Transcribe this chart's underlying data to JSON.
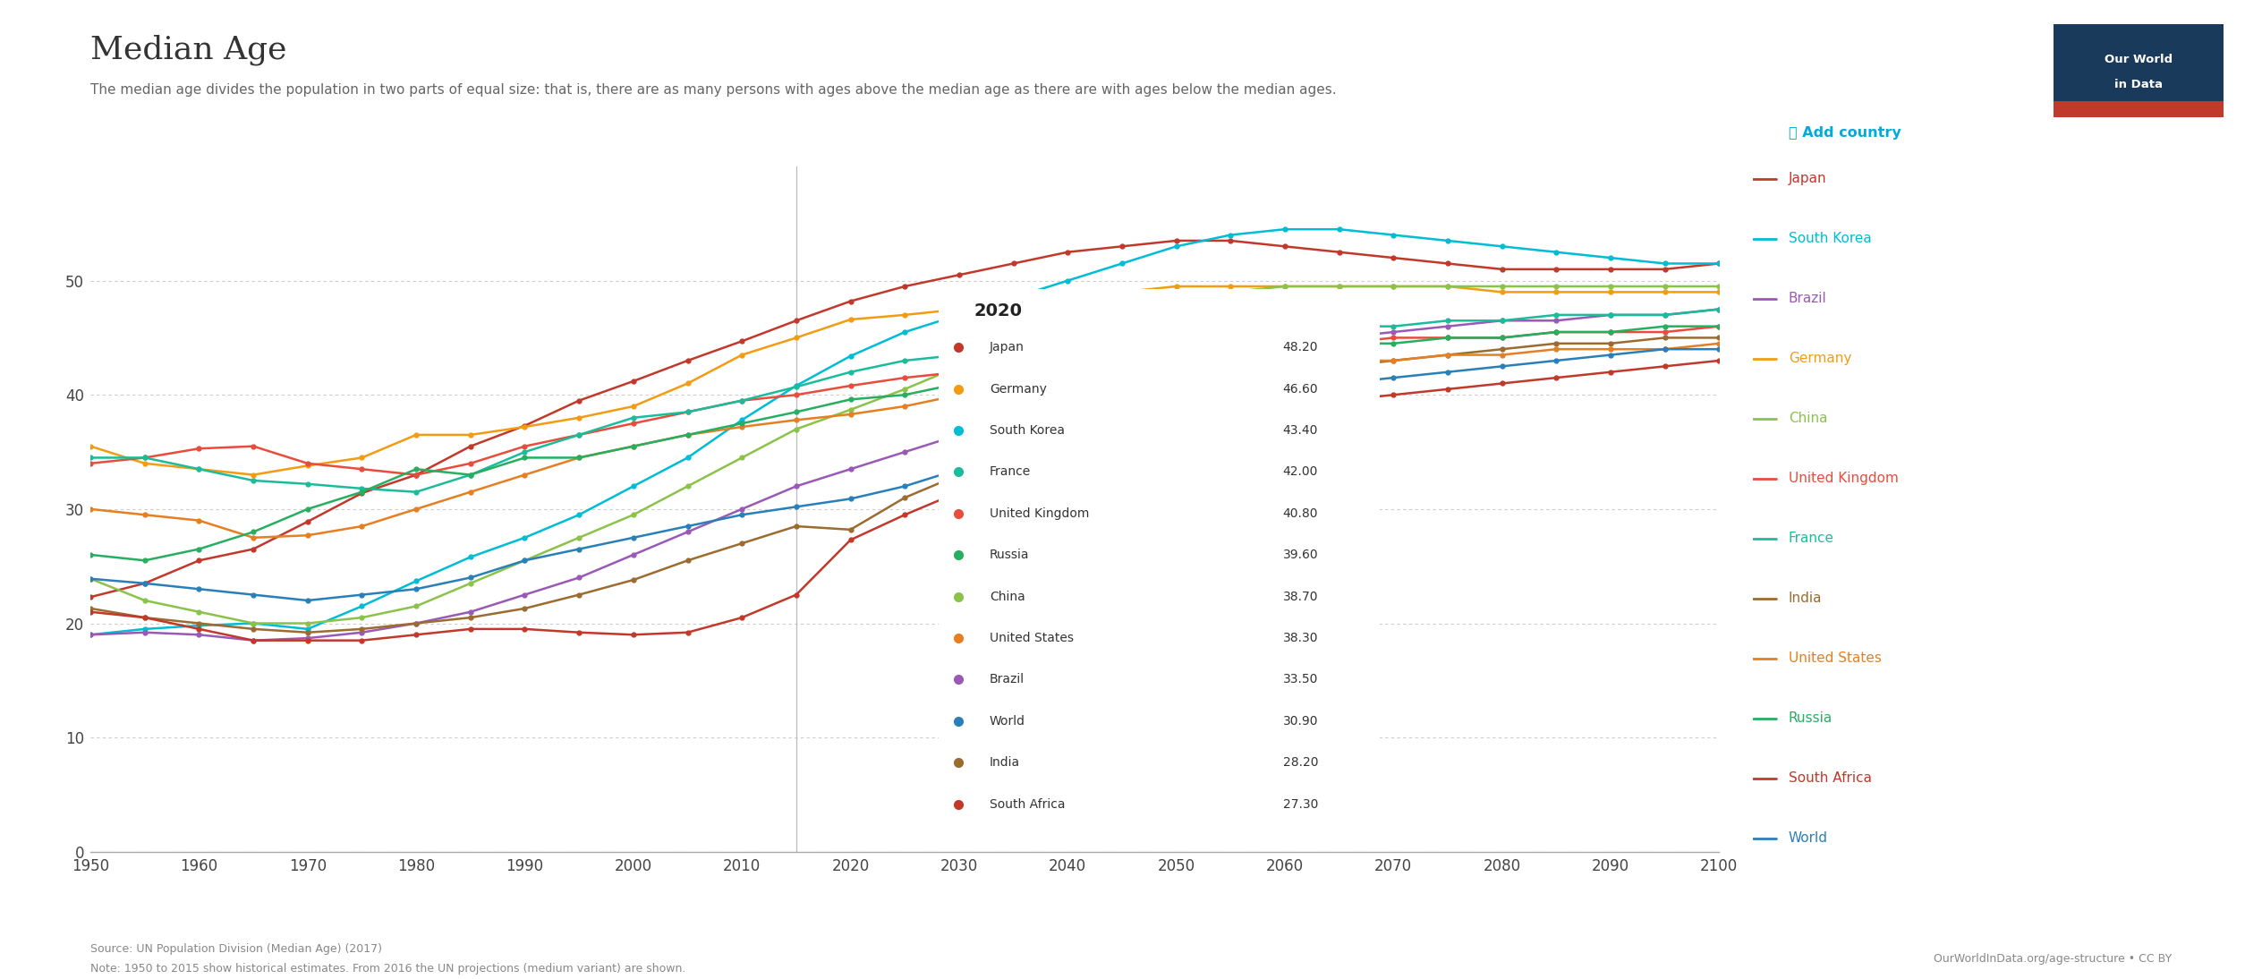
{
  "title": "Median Age",
  "subtitle": "The median age divides the population in two parts of equal size: that is, there are as many persons with ages above the median age as there are with ages below the median ages.",
  "source": "Source: UN Population Division (Median Age) (2017)\nNote: 1950 to 2015 show historical estimates. From 2016 the UN projections (medium variant) are shown.",
  "years": [
    1950,
    1955,
    1960,
    1965,
    1970,
    1975,
    1980,
    1985,
    1990,
    1995,
    2000,
    2005,
    2010,
    2015,
    2020,
    2025,
    2030,
    2035,
    2040,
    2045,
    2050,
    2055,
    2060,
    2065,
    2070,
    2075,
    2080,
    2085,
    2090,
    2095,
    2100
  ],
  "countries": {
    "Japan": {
      "color": "#c0392b",
      "values": [
        22.3,
        23.5,
        25.5,
        26.5,
        28.9,
        31.4,
        33.0,
        35.5,
        37.3,
        39.5,
        41.2,
        43.0,
        44.7,
        46.5,
        48.2,
        49.5,
        50.5,
        51.5,
        52.5,
        53.0,
        53.5,
        53.5,
        53.0,
        52.5,
        52.0,
        51.5,
        51.0,
        51.0,
        51.0,
        51.0,
        51.5
      ]
    },
    "South Korea": {
      "color": "#00bcd4",
      "values": [
        19.0,
        19.5,
        19.8,
        20.0,
        19.5,
        21.5,
        23.7,
        25.8,
        27.5,
        29.5,
        32.0,
        34.5,
        37.8,
        40.8,
        43.4,
        45.5,
        47.0,
        48.5,
        50.0,
        51.5,
        53.0,
        54.0,
        54.5,
        54.5,
        54.0,
        53.5,
        53.0,
        52.5,
        52.0,
        51.5,
        51.5
      ]
    },
    "Brazil": {
      "color": "#9b59b6",
      "values": [
        19.0,
        19.2,
        19.0,
        18.5,
        18.7,
        19.2,
        20.0,
        21.0,
        22.5,
        24.0,
        26.0,
        28.0,
        30.0,
        32.0,
        33.5,
        35.0,
        36.5,
        38.0,
        39.5,
        41.0,
        42.5,
        43.5,
        44.5,
        45.0,
        45.5,
        46.0,
        46.5,
        46.5,
        47.0,
        47.0,
        47.5
      ]
    },
    "Germany": {
      "color": "#f39c12",
      "values": [
        35.5,
        34.0,
        33.5,
        33.0,
        33.8,
        34.5,
        36.5,
        36.5,
        37.2,
        38.0,
        39.0,
        41.0,
        43.5,
        45.0,
        46.6,
        47.0,
        47.5,
        48.0,
        48.5,
        49.0,
        49.5,
        49.5,
        49.5,
        49.5,
        49.5,
        49.5,
        49.0,
        49.0,
        49.0,
        49.0,
        49.0
      ]
    },
    "China": {
      "color": "#8bc34a",
      "values": [
        23.9,
        22.0,
        21.0,
        20.0,
        20.0,
        20.5,
        21.5,
        23.5,
        25.5,
        27.5,
        29.5,
        32.0,
        34.5,
        37.0,
        38.7,
        40.5,
        42.5,
        44.0,
        45.5,
        47.0,
        48.0,
        49.0,
        49.5,
        49.5,
        49.5,
        49.5,
        49.5,
        49.5,
        49.5,
        49.5,
        49.5
      ]
    },
    "United Kingdom": {
      "color": "#e74c3c",
      "values": [
        34.0,
        34.5,
        35.3,
        35.5,
        34.0,
        33.5,
        33.0,
        34.0,
        35.5,
        36.5,
        37.5,
        38.5,
        39.5,
        40.0,
        40.8,
        41.5,
        42.0,
        42.5,
        43.0,
        43.5,
        44.0,
        44.0,
        44.5,
        44.5,
        45.0,
        45.0,
        45.0,
        45.5,
        45.5,
        45.5,
        46.0
      ]
    },
    "France": {
      "color": "#1abc9c",
      "values": [
        34.5,
        34.5,
        33.5,
        32.5,
        32.2,
        31.8,
        31.5,
        33.0,
        35.0,
        36.5,
        38.0,
        38.5,
        39.5,
        40.7,
        42.0,
        43.0,
        43.5,
        44.0,
        44.5,
        45.0,
        45.5,
        45.5,
        46.0,
        46.0,
        46.0,
        46.5,
        46.5,
        47.0,
        47.0,
        47.0,
        47.5
      ]
    },
    "India": {
      "color": "#9c6b30",
      "values": [
        21.3,
        20.5,
        20.0,
        19.5,
        19.2,
        19.5,
        20.0,
        20.5,
        21.3,
        22.5,
        23.8,
        25.5,
        27.0,
        28.5,
        28.2,
        31.0,
        33.0,
        35.0,
        36.5,
        38.0,
        39.5,
        40.5,
        41.5,
        42.5,
        43.0,
        43.5,
        44.0,
        44.5,
        44.5,
        45.0,
        45.0
      ]
    },
    "United States": {
      "color": "#e67e22",
      "values": [
        30.0,
        29.5,
        29.0,
        27.5,
        27.7,
        28.5,
        30.0,
        31.5,
        33.0,
        34.5,
        35.5,
        36.5,
        37.2,
        37.8,
        38.3,
        39.0,
        40.0,
        40.5,
        41.0,
        41.5,
        42.0,
        42.5,
        42.5,
        43.0,
        43.0,
        43.5,
        43.5,
        44.0,
        44.0,
        44.0,
        44.5
      ]
    },
    "Russia": {
      "color": "#27ae60",
      "values": [
        26.0,
        25.5,
        26.5,
        28.0,
        30.0,
        31.5,
        33.5,
        33.0,
        34.5,
        34.5,
        35.5,
        36.5,
        37.5,
        38.5,
        39.6,
        40.0,
        41.0,
        41.5,
        42.0,
        42.5,
        43.0,
        43.5,
        44.0,
        44.5,
        44.5,
        45.0,
        45.0,
        45.5,
        45.5,
        46.0,
        46.0
      ]
    },
    "South Africa": {
      "color": "#c0392b",
      "values": [
        21.0,
        20.5,
        19.5,
        18.5,
        18.5,
        18.5,
        19.0,
        19.5,
        19.5,
        19.2,
        19.0,
        19.2,
        20.5,
        22.5,
        27.3,
        29.5,
        31.5,
        33.0,
        35.0,
        36.5,
        37.5,
        38.5,
        39.0,
        39.5,
        40.0,
        40.5,
        41.0,
        41.5,
        42.0,
        42.5,
        43.0
      ]
    },
    "World": {
      "color": "#2980b9",
      "values": [
        23.9,
        23.5,
        23.0,
        22.5,
        22.0,
        22.5,
        23.0,
        24.0,
        25.5,
        26.5,
        27.5,
        28.5,
        29.5,
        30.2,
        30.9,
        32.0,
        33.5,
        35.0,
        36.5,
        37.5,
        38.5,
        39.5,
        40.0,
        41.0,
        41.5,
        42.0,
        42.5,
        43.0,
        43.5,
        44.0,
        44.0
      ]
    }
  },
  "legend_2020_entries": [
    [
      "Japan",
      48.2
    ],
    [
      "Germany",
      46.6
    ],
    [
      "South Korea",
      43.4
    ],
    [
      "France",
      42.0
    ],
    [
      "United Kingdom",
      40.8
    ],
    [
      "Russia",
      39.6
    ],
    [
      "China",
      38.7
    ],
    [
      "United States",
      38.3
    ],
    [
      "Brazil",
      33.5
    ],
    [
      "World",
      30.9
    ],
    [
      "India",
      28.2
    ],
    [
      "South Africa",
      27.3
    ]
  ],
  "legend_order": [
    "Japan",
    "South Korea",
    "Brazil",
    "Germany",
    "China",
    "United Kingdom",
    "France",
    "India",
    "United States",
    "Russia",
    "South Africa",
    "World"
  ],
  "legend_colors": {
    "Japan": "#c0392b",
    "South Korea": "#00bcd4",
    "Brazil": "#9b59b6",
    "Germany": "#f39c12",
    "China": "#8bc34a",
    "United Kingdom": "#e74c3c",
    "France": "#1abc9c",
    "India": "#9c6b30",
    "United States": "#e67e22",
    "Russia": "#27ae60",
    "South Africa": "#c0392b",
    "World": "#2980b9"
  },
  "xlim": [
    1950,
    2100
  ],
  "ylim": [
    0,
    60
  ],
  "yticks": [
    0,
    10,
    20,
    30,
    40,
    50
  ],
  "xticks": [
    1950,
    1960,
    1970,
    1980,
    1990,
    2000,
    2010,
    2020,
    2030,
    2040,
    2050,
    2060,
    2070,
    2080,
    2090,
    2100
  ],
  "owid_box_color": "#1a3a5c",
  "owid_red": "#c0392b"
}
